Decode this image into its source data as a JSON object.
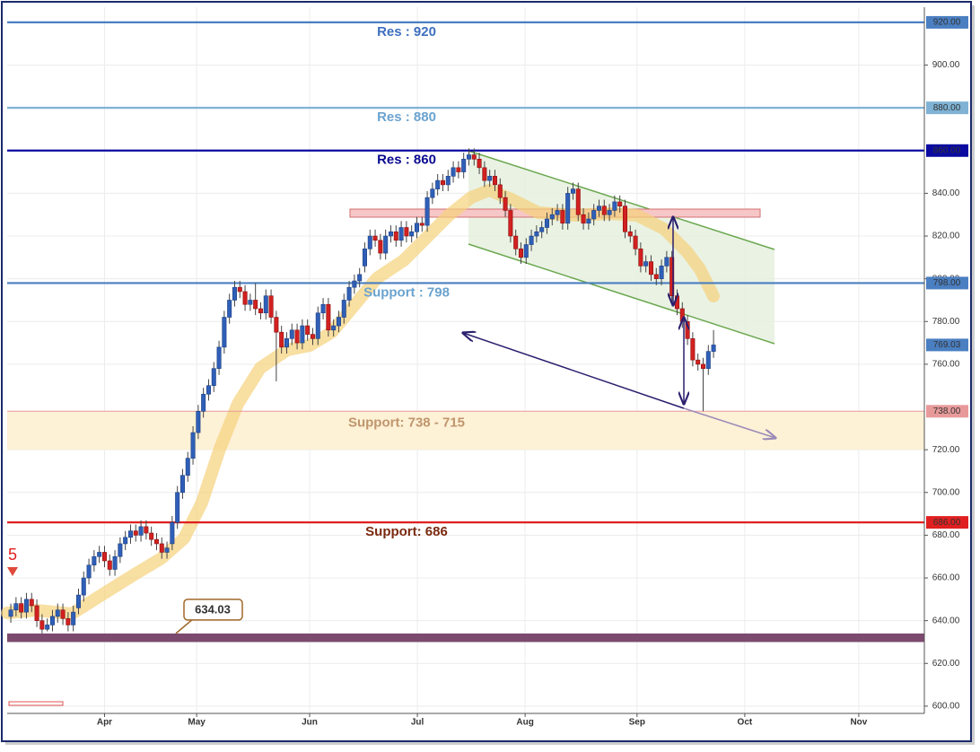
{
  "chart_data": {
    "type": "candlestick",
    "marker_text": "5",
    "callout": 634.03,
    "last_price_label": "769.03",
    "up_color": "#2f5fb8",
    "down_color": "#d22020",
    "ylim": [
      596.6,
      927.1
    ],
    "yticks": [
      {
        "value": 600,
        "label": "600.00"
      },
      {
        "value": 620,
        "label": "620.00"
      },
      {
        "value": 640,
        "label": "640.00"
      },
      {
        "value": 660,
        "label": "660.00"
      },
      {
        "value": 680,
        "label": "680.00"
      },
      {
        "value": 700,
        "label": "700.00"
      },
      {
        "value": 720,
        "label": "720.00"
      },
      {
        "value": 760,
        "label": "760.00"
      },
      {
        "value": 780,
        "label": "780.00"
      },
      {
        "value": 800,
        "label": "800.00"
      },
      {
        "value": 820,
        "label": "820.00"
      },
      {
        "value": 840,
        "label": "840.00"
      },
      {
        "value": 900,
        "label": "900.00"
      }
    ],
    "xlim": [
      -0.7,
      175.5
    ],
    "xticks": [
      {
        "value": 18,
        "label": "Apr"
      },
      {
        "value": 35.7,
        "label": "May"
      },
      {
        "value": 57.4,
        "label": "Jun"
      },
      {
        "value": 78.1,
        "label": "Jul"
      },
      {
        "value": 98.8,
        "label": "Aug"
      },
      {
        "value": 120.3,
        "label": "Sep"
      },
      {
        "value": 141,
        "label": "Oct"
      },
      {
        "value": 162.9,
        "label": "Nov"
      }
    ],
    "grid": true,
    "zones": [
      {
        "from": 630,
        "to": 634,
        "color": "#7b4a6e"
      },
      {
        "from": 720,
        "to": 738,
        "color": "#fdf1d6",
        "text": "Support: 738 - 715",
        "text_color": "#c0956c"
      }
    ],
    "levels": [
      {
        "value": 920,
        "label": "920.00",
        "text": "Res : 920",
        "color": "#4a7fc1",
        "text_color": "#3d6fbf"
      },
      {
        "value": 880,
        "label": "880.00",
        "text": "Res : 880",
        "color": "#7fb2d4",
        "text_color": "#6aa3cf"
      },
      {
        "value": 860,
        "label": "860.00",
        "text": "Res : 860",
        "color": "#0a0aa0",
        "text_color": "#0a0a90"
      },
      {
        "value": 798,
        "label": "798.00",
        "text": "Support : 798",
        "color": "#4a7fc1",
        "text_color": "#6aa3cf"
      },
      {
        "value": 738,
        "label": "738.00",
        "color": "#e89a9a"
      },
      {
        "value": 686,
        "label": "686.00",
        "text": "Support: 686",
        "color": "#e02020",
        "text_color": "#7a2a10"
      }
    ],
    "open": [
      642,
      645,
      648,
      644,
      650,
      647,
      640,
      636,
      638,
      642,
      645,
      641,
      638,
      646,
      652,
      660,
      666,
      670,
      672,
      668,
      664,
      670,
      676,
      679,
      682,
      680,
      684,
      681,
      678,
      676,
      672,
      676,
      686,
      700,
      708,
      716,
      728,
      738,
      746,
      750,
      758,
      768,
      782,
      790,
      796,
      794,
      788,
      790,
      786,
      784,
      792,
      782,
      775,
      768,
      772,
      776,
      770,
      778,
      774,
      772,
      784,
      788,
      776,
      778,
      782,
      790,
      796,
      799,
      806,
      814,
      820,
      818,
      812,
      820,
      822,
      818,
      824,
      820,
      822,
      826,
      825,
      838,
      842,
      846,
      844,
      848,
      852,
      850,
      856,
      858,
      856,
      852,
      846,
      848,
      844,
      838,
      832,
      820,
      814,
      810,
      816,
      820,
      822,
      824,
      828,
      830,
      832,
      826,
      840,
      842,
      830,
      826,
      828,
      832,
      834,
      830,
      832,
      836,
      834,
      822,
      820,
      814,
      806,
      808,
      802,
      800,
      806,
      810,
      792,
      786,
      780,
      772,
      762,
      760,
      758,
      766
    ],
    "high": [
      648,
      651,
      651,
      653,
      653,
      650,
      643,
      641,
      645,
      648,
      648,
      644,
      647,
      655,
      663,
      669,
      673,
      675,
      675,
      671,
      673,
      679,
      682,
      685,
      685,
      687,
      687,
      684,
      681,
      679,
      677,
      689,
      703,
      711,
      719,
      731,
      741,
      749,
      753,
      761,
      771,
      785,
      793,
      799,
      799,
      797,
      793,
      798,
      789,
      795,
      795,
      785,
      778,
      775,
      779,
      779,
      781,
      781,
      777,
      787,
      791,
      791,
      781,
      785,
      793,
      799,
      802,
      805,
      817,
      823,
      823,
      821,
      823,
      825,
      825,
      827,
      827,
      825,
      829,
      829,
      841,
      845,
      849,
      849,
      851,
      855,
      855,
      859,
      861,
      861,
      859,
      855,
      851,
      851,
      847,
      841,
      835,
      823,
      817,
      819,
      823,
      825,
      827,
      831,
      833,
      835,
      835,
      843,
      845,
      845,
      833,
      831,
      835,
      837,
      837,
      835,
      839,
      839,
      837,
      825,
      823,
      817,
      811,
      811,
      805,
      809,
      813,
      813,
      795,
      789,
      783,
      775,
      765,
      763,
      769,
      776
    ],
    "low": [
      639,
      642,
      641,
      641,
      644,
      637,
      634.03,
      635,
      635,
      639,
      638,
      635,
      635,
      643,
      649,
      657,
      663,
      667,
      665,
      661,
      661,
      667,
      673,
      676,
      677,
      677,
      678,
      675,
      673,
      669,
      669,
      673,
      683,
      697,
      705,
      713,
      725,
      735,
      743,
      747,
      755,
      765,
      779,
      787,
      791,
      785,
      785,
      783,
      781,
      781,
      779,
      752,
      765,
      765,
      769,
      767,
      767,
      771,
      769,
      769,
      781,
      773,
      773,
      775,
      779,
      787,
      793,
      796,
      803,
      811,
      815,
      809,
      809,
      817,
      815,
      815,
      817,
      817,
      819,
      822,
      822,
      835,
      839,
      841,
      841,
      845,
      847,
      847,
      853,
      853,
      849,
      843,
      843,
      841,
      835,
      829,
      817,
      811,
      807,
      807,
      813,
      817,
      819,
      821,
      825,
      827,
      823,
      823,
      837,
      827,
      823,
      823,
      825,
      829,
      827,
      827,
      829,
      831,
      819,
      817,
      811,
      803,
      803,
      799,
      797,
      797,
      803,
      789,
      783,
      777,
      769,
      759,
      757,
      738,
      755,
      763
    ],
    "close": [
      645,
      648,
      644,
      650,
      647,
      640,
      636,
      638,
      642,
      645,
      641,
      638,
      644,
      652,
      660,
      666,
      670,
      672,
      668,
      664,
      670,
      676,
      679,
      682,
      680,
      684,
      681,
      678,
      676,
      672,
      674,
      686,
      700,
      708,
      716,
      728,
      738,
      746,
      750,
      758,
      768,
      782,
      790,
      796,
      794,
      788,
      790,
      786,
      784,
      792,
      782,
      775,
      768,
      772,
      776,
      770,
      778,
      774,
      772,
      784,
      788,
      776,
      778,
      782,
      790,
      796,
      799,
      802,
      814,
      820,
      818,
      812,
      820,
      822,
      818,
      824,
      820,
      822,
      826,
      825,
      838,
      842,
      846,
      844,
      848,
      852,
      850,
      856,
      858,
      856,
      852,
      846,
      848,
      844,
      838,
      832,
      820,
      814,
      810,
      816,
      820,
      822,
      824,
      828,
      830,
      832,
      826,
      840,
      842,
      830,
      826,
      828,
      832,
      834,
      830,
      832,
      836,
      834,
      822,
      820,
      814,
      806,
      808,
      802,
      800,
      806,
      810,
      792,
      786,
      780,
      772,
      762,
      760,
      758,
      766,
      769.03
    ]
  }
}
